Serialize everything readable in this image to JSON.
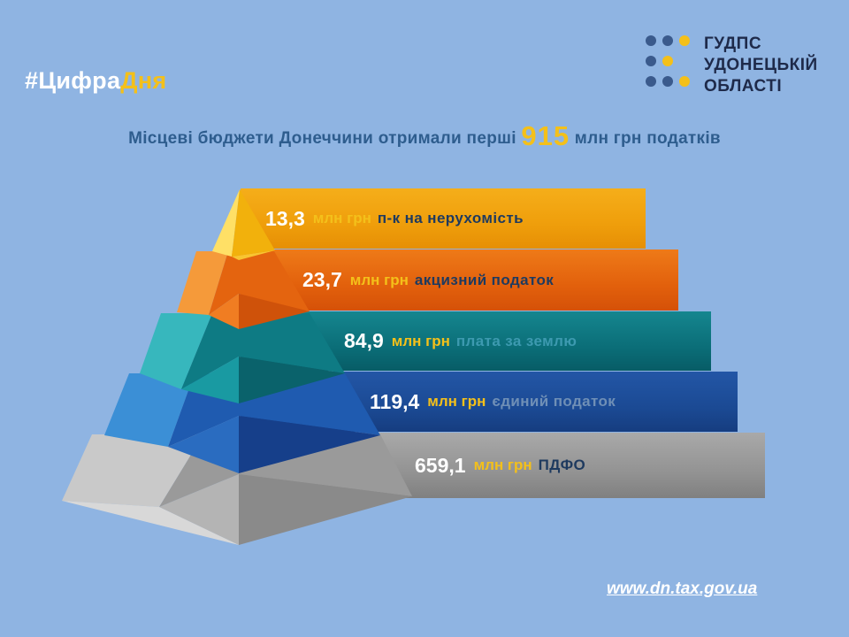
{
  "hashtag": {
    "part1": "#Цифра",
    "part2": "Дня"
  },
  "logo": {
    "lines": [
      "ГУДПС",
      "УДОНЕЦЬКІЙ",
      "ОБЛАСТІ"
    ],
    "dot_colors": {
      "dark": "#3a5a8c",
      "accent": "#f4c01a"
    }
  },
  "headline": {
    "before": "Місцеві бюджети Донеччини отримали перші ",
    "number": "915",
    "after": " млн грн податків"
  },
  "tiers": [
    {
      "value": "13,3",
      "unit": "млн грн",
      "label": "п-к на нерухомість",
      "label_color": "#1e3a5f"
    },
    {
      "value": "23,7",
      "unit": "млн грн",
      "label": "акцизний податок",
      "label_color": "#1e3a5f"
    },
    {
      "value": "84,9",
      "unit": "млн грн",
      "label": "плата за землю",
      "label_color": "#3d9ab0"
    },
    {
      "value": "119,4",
      "unit": "млн грн",
      "label": "єдиний податок",
      "label_color": "#6f8fb6"
    },
    {
      "value": "659,1",
      "unit": "млн грн",
      "label": "ПДФО",
      "label_color": "#1e3a5f"
    }
  ],
  "colors": {
    "background": "#8fb4e2",
    "accent": "#f4c01a",
    "tier_colors": [
      "#f0a312",
      "#e2620e",
      "#0c707a",
      "#1c4c96",
      "#969696"
    ]
  },
  "footer": {
    "url": "www.dn.tax.gov.ua"
  }
}
